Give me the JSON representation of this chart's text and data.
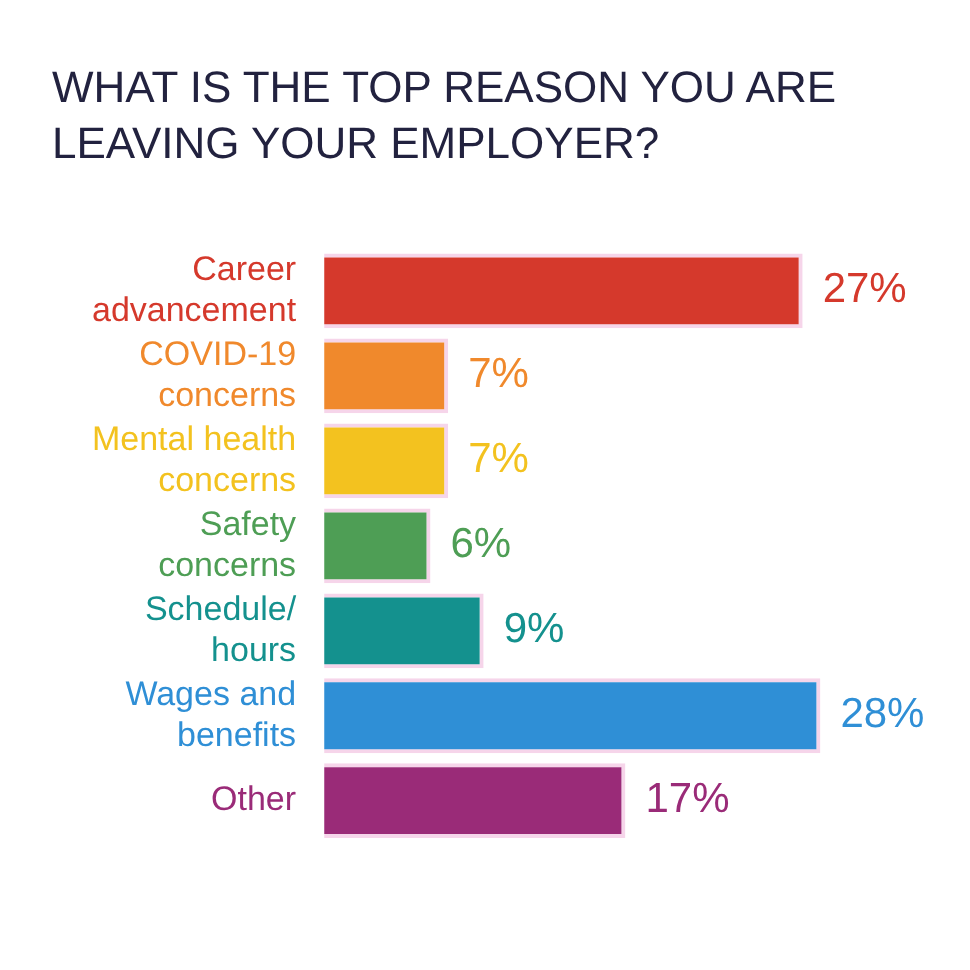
{
  "chart_data": {
    "type": "bar",
    "orientation": "horizontal",
    "title": "WHAT IS THE TOP REASON YOU ARE LEAVING YOUR EMPLOYER?",
    "categories": [
      "Career advancement",
      "COVID-19 concerns",
      "Mental health concerns",
      "Safety concerns",
      "Schedule/ hours",
      "Wages and benefits",
      "Other"
    ],
    "values": [
      27,
      7,
      7,
      6,
      9,
      28,
      17
    ],
    "value_labels": [
      "27%",
      "7%",
      "7%",
      "6%",
      "9%",
      "28%",
      "17%"
    ],
    "colors": [
      "#d5392c",
      "#f0892c",
      "#f3c21f",
      "#4e9e55",
      "#14918e",
      "#2f8fd6",
      "#9a2b78"
    ],
    "tick_labels": "y",
    "legend": false
  }
}
